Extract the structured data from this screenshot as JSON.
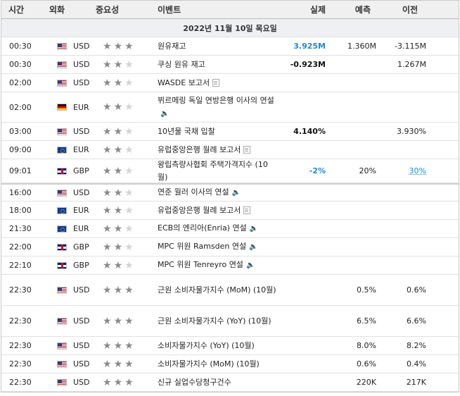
{
  "headers": {
    "time": "시간",
    "currency": "외화",
    "importance": "중요성",
    "event": "이벤트",
    "actual": "실제",
    "forecast": "예측",
    "previous": "이전"
  },
  "date_label": "2022년 11월 10일 목요일",
  "rows": [
    {
      "time": "00:30",
      "currency": "USD",
      "flag": "us",
      "stars": 3,
      "event": "원유재고",
      "icon": "",
      "actual": "3.925M",
      "actual_style": "blue",
      "forecast": "1.360M",
      "previous": "-3.115M",
      "prev_style": ""
    },
    {
      "time": "00:30",
      "currency": "USD",
      "flag": "us",
      "stars": 2,
      "event": "쿠싱 원유 재고",
      "icon": "",
      "actual": "-0.923M",
      "actual_style": "dark",
      "forecast": "",
      "previous": "1.267M",
      "prev_style": ""
    },
    {
      "time": "02:00",
      "currency": "USD",
      "flag": "us",
      "stars": 2,
      "event": "WASDE 보고서",
      "icon": "doc",
      "actual": "",
      "actual_style": "",
      "forecast": "",
      "previous": "",
      "prev_style": ""
    },
    {
      "time": "02:00",
      "currency": "EUR",
      "flag": "de",
      "stars": 2,
      "event": "뷔르메링 독일 연방은행 이사의 연설",
      "icon": "speaker",
      "actual": "",
      "actual_style": "",
      "forecast": "",
      "previous": "",
      "prev_style": ""
    },
    {
      "time": "03:00",
      "currency": "USD",
      "flag": "us",
      "stars": 2,
      "event": "10년물 국채 입찰",
      "icon": "",
      "actual": "4.140%",
      "actual_style": "dark",
      "forecast": "",
      "previous": "3.930%",
      "prev_style": ""
    },
    {
      "time": "09:00",
      "currency": "EUR",
      "flag": "eu",
      "stars": 2,
      "event": "유럽중앙은행 월례 보고서",
      "icon": "doc",
      "actual": "",
      "actual_style": "",
      "forecast": "",
      "previous": "",
      "prev_style": ""
    },
    {
      "time": "09:01",
      "currency": "GBP",
      "flag": "gb",
      "stars": 2,
      "event": "왕립측량사협회 주택가격지수 (10월)",
      "icon": "",
      "actual": "-2%",
      "actual_style": "blue",
      "forecast": "20%",
      "previous": "30%",
      "prev_style": "link"
    },
    {
      "time": "16:00",
      "currency": "USD",
      "flag": "us",
      "stars": 2,
      "event": "연준 월러 이사의 연설",
      "icon": "speaker",
      "actual": "",
      "actual_style": "",
      "forecast": "",
      "previous": "",
      "prev_style": "",
      "sep": true
    },
    {
      "time": "18:00",
      "currency": "EUR",
      "flag": "eu",
      "stars": 2,
      "event": "유럽중앙은행 월례 보고서",
      "icon": "doc",
      "actual": "",
      "actual_style": "",
      "forecast": "",
      "previous": "",
      "prev_style": ""
    },
    {
      "time": "21:30",
      "currency": "EUR",
      "flag": "eu",
      "stars": 2,
      "event": "ECB의 엔리아(Enria) 연설",
      "icon": "speaker",
      "actual": "",
      "actual_style": "",
      "forecast": "",
      "previous": "",
      "prev_style": ""
    },
    {
      "time": "22:00",
      "currency": "GBP",
      "flag": "gb",
      "stars": 2,
      "event": "MPC 위원 Ramsden 연설",
      "icon": "speaker",
      "actual": "",
      "actual_style": "",
      "forecast": "",
      "previous": "",
      "prev_style": ""
    },
    {
      "time": "22:10",
      "currency": "GBP",
      "flag": "gb",
      "stars": 2,
      "event": "MPC 위원 Tenreyro 연설",
      "icon": "speaker",
      "actual": "",
      "actual_style": "",
      "forecast": "",
      "previous": "",
      "prev_style": ""
    },
    {
      "time": "22:30",
      "currency": "USD",
      "flag": "us",
      "stars": 3,
      "event": "근원 소비자물가지수 (MoM) (10월)",
      "icon": "",
      "actual": "",
      "actual_style": "",
      "forecast": "0.5%",
      "previous": "0.6%",
      "prev_style": ""
    },
    {
      "time": "22:30",
      "currency": "USD",
      "flag": "us",
      "stars": 3,
      "event": "근원 소비자물가지수 (YoY) (10월)",
      "icon": "",
      "actual": "",
      "actual_style": "",
      "forecast": "6.5%",
      "previous": "6.6%",
      "prev_style": ""
    },
    {
      "time": "22:30",
      "currency": "USD",
      "flag": "us",
      "stars": 3,
      "event": "소비자물가지수 (YoY) (10월)",
      "icon": "",
      "actual": "",
      "actual_style": "",
      "forecast": "8.0%",
      "previous": "8.2%",
      "prev_style": ""
    },
    {
      "time": "22:30",
      "currency": "USD",
      "flag": "us",
      "stars": 3,
      "event": "소비자물가지수 (MoM) (10월)",
      "icon": "",
      "actual": "",
      "actual_style": "",
      "forecast": "0.6%",
      "previous": "0.4%",
      "prev_style": ""
    },
    {
      "time": "22:30",
      "currency": "USD",
      "flag": "us",
      "stars": 3,
      "event": "신규 실업수당청구건수",
      "icon": "",
      "actual": "",
      "actual_style": "",
      "forecast": "220K",
      "previous": "217K",
      "prev_style": ""
    }
  ]
}
